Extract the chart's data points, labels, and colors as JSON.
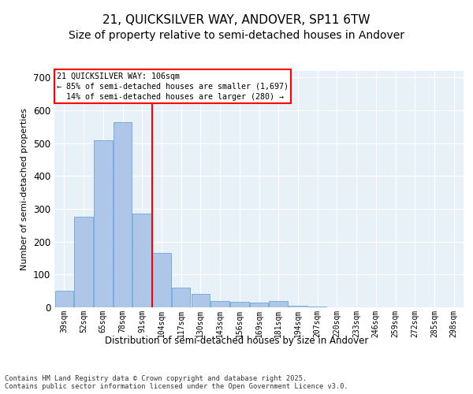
{
  "title1": "21, QUICKSILVER WAY, ANDOVER, SP11 6TW",
  "title2": "Size of property relative to semi-detached houses in Andover",
  "xlabel": "Distribution of semi-detached houses by size in Andover",
  "ylabel": "Number of semi-detached properties",
  "bar_labels": [
    "39sqm",
    "52sqm",
    "65sqm",
    "78sqm",
    "91sqm",
    "104sqm",
    "117sqm",
    "130sqm",
    "143sqm",
    "156sqm",
    "169sqm",
    "181sqm",
    "194sqm",
    "207sqm",
    "220sqm",
    "233sqm",
    "246sqm",
    "259sqm",
    "272sqm",
    "285sqm",
    "298sqm"
  ],
  "bar_values": [
    50,
    275,
    510,
    565,
    285,
    165,
    60,
    40,
    20,
    18,
    15,
    20,
    5,
    2,
    0,
    0,
    0,
    0,
    0,
    0,
    0
  ],
  "bar_color": "#aec6e8",
  "bar_edge_color": "#5a9fd4",
  "annotation_text": "21 QUICKSILVER WAY: 106sqm\n← 85% of semi-detached houses are smaller (1,697)\n  14% of semi-detached houses are larger (280) →",
  "ylim": [
    0,
    720
  ],
  "yticks": [
    0,
    100,
    200,
    300,
    400,
    500,
    600,
    700
  ],
  "background_color": "#e8f0f8",
  "footer": "Contains HM Land Registry data © Crown copyright and database right 2025.\nContains public sector information licensed under the Open Government Licence v3.0.",
  "grid_color": "#ffffff",
  "title_fontsize": 11,
  "subtitle_fontsize": 10,
  "red_line_index": 5
}
